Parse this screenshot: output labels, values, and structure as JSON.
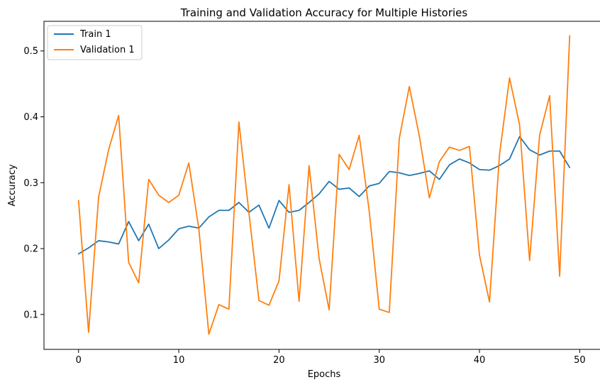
{
  "chart_data": {
    "type": "line",
    "title": "Training and Validation Accuracy for Multiple Histories",
    "xlabel": "Epochs",
    "ylabel": "Accuracy",
    "xlim": [
      -3.45,
      52.45
    ],
    "ylim": [
      0.047,
      0.545
    ],
    "xticks": [
      0,
      10,
      20,
      30,
      40,
      50
    ],
    "yticks": [
      0.1,
      0.2,
      0.3,
      0.4,
      0.5
    ],
    "grid": false,
    "legend_position": "top-left",
    "x": [
      0,
      1,
      2,
      3,
      4,
      5,
      6,
      7,
      8,
      9,
      10,
      11,
      12,
      13,
      14,
      15,
      16,
      17,
      18,
      19,
      20,
      21,
      22,
      23,
      24,
      25,
      26,
      27,
      28,
      29,
      30,
      31,
      32,
      33,
      34,
      35,
      36,
      37,
      38,
      39,
      40,
      41,
      42,
      43,
      44,
      45,
      46,
      47,
      48,
      49
    ],
    "series": [
      {
        "name": "Train 1",
        "color": "#1f77b4",
        "values": [
          0.192,
          0.201,
          0.212,
          0.21,
          0.207,
          0.241,
          0.212,
          0.237,
          0.2,
          0.213,
          0.23,
          0.234,
          0.231,
          0.248,
          0.258,
          0.258,
          0.27,
          0.255,
          0.266,
          0.231,
          0.273,
          0.255,
          0.258,
          0.27,
          0.283,
          0.302,
          0.29,
          0.292,
          0.279,
          0.295,
          0.299,
          0.317,
          0.315,
          0.311,
          0.314,
          0.318,
          0.305,
          0.327,
          0.336,
          0.33,
          0.32,
          0.319,
          0.326,
          0.336,
          0.37,
          0.35,
          0.342,
          0.348,
          0.348,
          0.323
        ]
      },
      {
        "name": "Validation 1",
        "color": "#ff7f0e",
        "values": [
          0.273,
          0.073,
          0.278,
          0.35,
          0.402,
          0.179,
          0.148,
          0.305,
          0.281,
          0.27,
          0.281,
          0.33,
          0.23,
          0.07,
          0.115,
          0.108,
          0.392,
          0.254,
          0.121,
          0.114,
          0.151,
          0.297,
          0.12,
          0.326,
          0.185,
          0.107,
          0.343,
          0.32,
          0.372,
          0.257,
          0.108,
          0.103,
          0.367,
          0.446,
          0.371,
          0.277,
          0.332,
          0.354,
          0.349,
          0.355,
          0.19,
          0.119,
          0.343,
          0.459,
          0.388,
          0.182,
          0.372,
          0.432,
          0.158,
          0.523
        ]
      }
    ]
  }
}
